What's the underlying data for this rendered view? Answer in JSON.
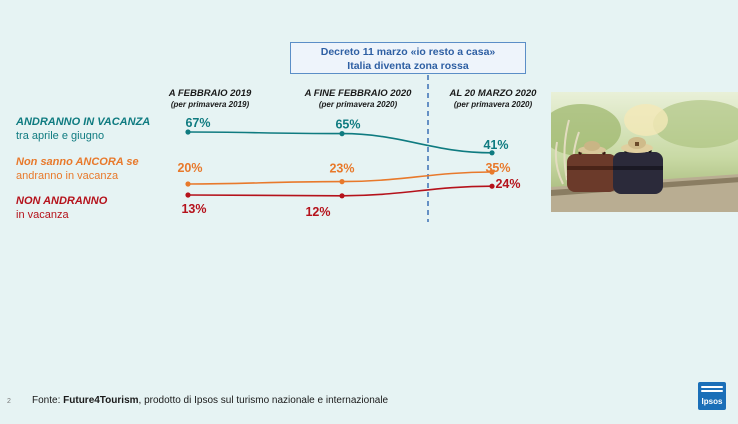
{
  "decree": {
    "line1": "Decreto 11 marzo «io resto a casa»",
    "line2": "Italia diventa zona rossa"
  },
  "periods": [
    {
      "title": "A FEBBRAIO 2019",
      "sub": "(per primavera 2019)"
    },
    {
      "title": "A FINE FEBBRAIO 2020",
      "sub": "(per primavera 2020)"
    },
    {
      "title": "AL 20 MARZO 2020",
      "sub": "(per primavera 2020)"
    }
  ],
  "rows": {
    "vacanza": {
      "line1": "ANDRANNO IN VACANZA",
      "line2": "tra aprile e giugno"
    },
    "incerti": {
      "line1": "Non sanno ANCORA se",
      "line2": "andranno in vacanza"
    },
    "non": {
      "line1": "NON ANDRANNO",
      "line2": "in vacanza"
    }
  },
  "chart_data": {
    "type": "line",
    "categories": [
      "A FEBBRAIO 2019",
      "A FINE FEBBRAIO 2020",
      "AL 20 MARZO 2020"
    ],
    "series": [
      {
        "name": "ANDRANNO IN VACANZA tra aprile e giugno",
        "values": [
          67,
          65,
          41
        ],
        "labels": [
          "67%",
          "65%",
          "41%"
        ],
        "color": "#0f7b80"
      },
      {
        "name": "Non sanno ANCORA se andranno in vacanza",
        "values": [
          20,
          23,
          35
        ],
        "labels": [
          "20%",
          "23%",
          "35%"
        ],
        "color": "#e8792b"
      },
      {
        "name": "NON ANDRANNO in vacanza",
        "values": [
          13,
          12,
          24
        ],
        "labels": [
          "13%",
          "12%",
          "24%"
        ],
        "color": "#b5121b"
      }
    ],
    "divider_color": "#3a6fb5"
  },
  "footer": {
    "page": "2",
    "source_prefix": "Fonte: ",
    "source_bold": "Future4Tourism",
    "source_rest": ", prodotto di Ipsos sul turismo nazionale e internazionale",
    "logo": "Ipsos"
  }
}
